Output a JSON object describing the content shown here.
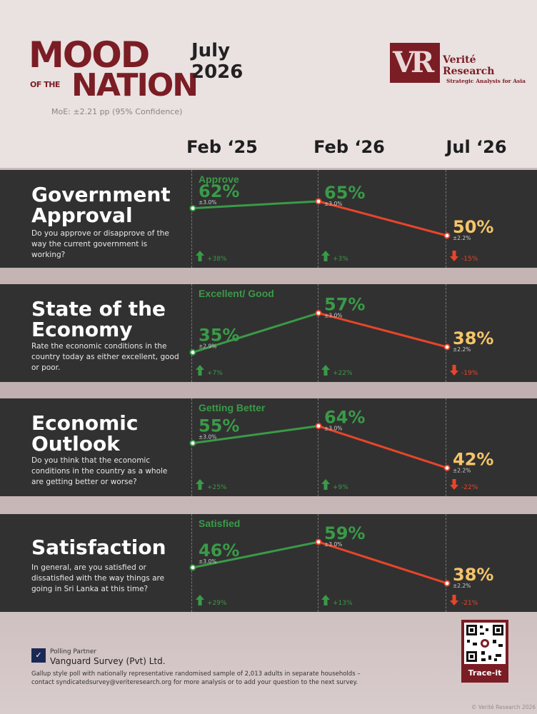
{
  "header": {
    "logo_line1": "MOOD",
    "logo_small": "OF THE",
    "logo_line2": "NATION",
    "moe": "MoE: ±2.21 pp (95% Confidence)",
    "month": "July",
    "year": "2026",
    "brand_letters": "VR",
    "brand_line1": "Verité",
    "brand_line2": "Research",
    "brand_tagline": "Strategic Analysis for Asia"
  },
  "columns": [
    "Feb ‘25",
    "Feb ‘26",
    "Jul ‘26"
  ],
  "colors": {
    "up": "#3a9a48",
    "down": "#e8452a",
    "latest": "#f5c46a",
    "brand": "#7b1d24"
  },
  "chart_data": [
    {
      "type": "line",
      "title": "Government Approval",
      "question": "Do you approve or disapprove of the way the current government is working?",
      "measure": "Approve",
      "x": [
        "Feb ‘25",
        "Feb ‘26",
        "Jul ‘26"
      ],
      "values": [
        62,
        65,
        50
      ],
      "value_labels": [
        "62%",
        "65%",
        "50%"
      ],
      "moe": [
        "±3.0%",
        "±3.0%",
        "±2.2%"
      ],
      "changes": [
        "+38%",
        "+3%",
        "-15%"
      ],
      "change_dirs": [
        "up",
        "up",
        "down"
      ],
      "ylim": [
        45,
        70
      ]
    },
    {
      "type": "line",
      "title": "State of the Economy",
      "question": "Rate the economic conditions in the country today as either excellent, good or poor.",
      "measure": "Excellent/ Good",
      "x": [
        "Feb ‘25",
        "Feb ‘26",
        "Jul ‘26"
      ],
      "values": [
        35,
        57,
        38
      ],
      "value_labels": [
        "35%",
        "57%",
        "38%"
      ],
      "moe": [
        "±2.9%",
        "±3.0%",
        "±2.2%"
      ],
      "changes": [
        "+7%",
        "+22%",
        "-19%"
      ],
      "change_dirs": [
        "up",
        "up",
        "down"
      ],
      "ylim": [
        30,
        62
      ]
    },
    {
      "type": "line",
      "title": "Economic Outlook",
      "question": "Do you think that the economic conditions in the country as a whole are getting better or worse?",
      "measure": "Getting Better",
      "x": [
        "Feb ‘25",
        "Feb ‘26",
        "Jul ‘26"
      ],
      "values": [
        55,
        64,
        42
      ],
      "value_labels": [
        "55%",
        "64%",
        "42%"
      ],
      "moe": [
        "±3.0%",
        "±3.0%",
        "±2.2%"
      ],
      "changes": [
        "+25%",
        "+9%",
        "-22%"
      ],
      "change_dirs": [
        "up",
        "up",
        "down"
      ],
      "ylim": [
        38,
        68
      ]
    },
    {
      "type": "line",
      "title": "Satisfaction",
      "question": "In general, are you satisfied or dissatisfied with the way things are going in Sri Lanka at this time?",
      "measure": "Satisfied",
      "x": [
        "Feb ‘25",
        "Feb ‘26",
        "Jul ‘26"
      ],
      "values": [
        46,
        59,
        38
      ],
      "value_labels": [
        "46%",
        "59%",
        "38%"
      ],
      "moe": [
        "±3.0%",
        "±3.0%",
        "±2.2%"
      ],
      "changes": [
        "+29%",
        "+13%",
        "-21%"
      ],
      "change_dirs": [
        "up",
        "up",
        "down"
      ],
      "ylim": [
        34,
        63
      ]
    }
  ],
  "footer": {
    "partner_label": "Polling Partner",
    "partner_name": "Vanguard Survey (Pvt) Ltd.",
    "note": "Gallup style poll with nationally representative randomised sample of 2,013 adults in separate households – contact syndicatedsurvey@veriteresearch.org for more analysis or to add your question to the next survey.",
    "qr_label": "Trace-it",
    "copyright": "© Verité Research 2026"
  }
}
